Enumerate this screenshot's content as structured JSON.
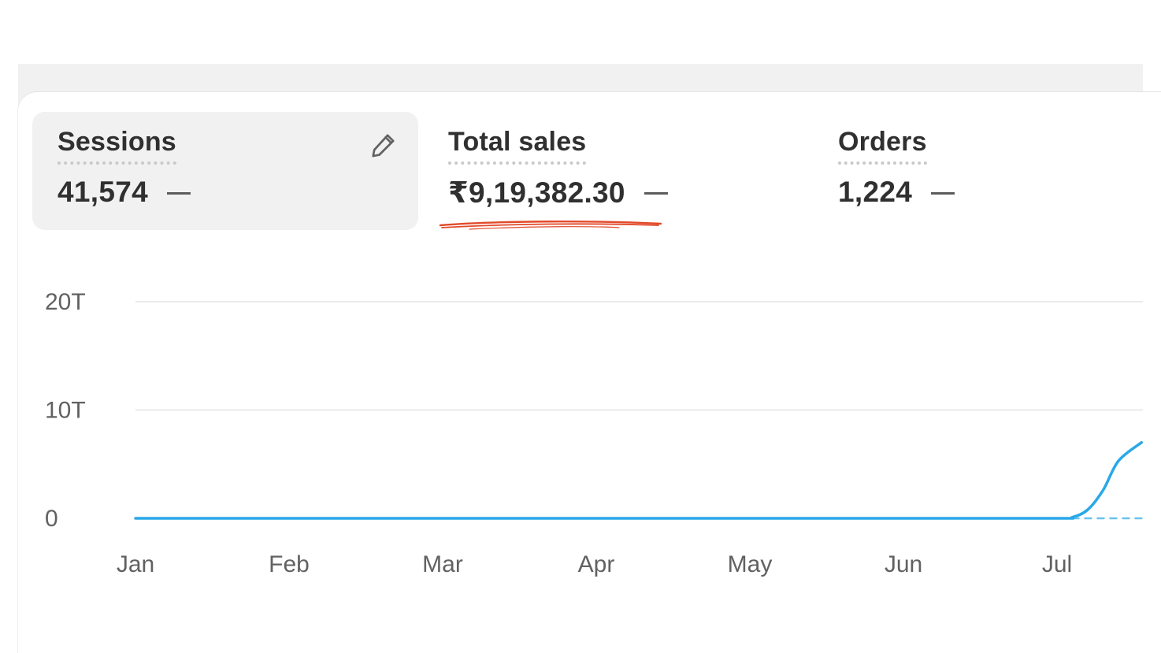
{
  "metrics": [
    {
      "label": "Sessions",
      "value": "41,574",
      "active": true
    },
    {
      "label": "Total sales",
      "value": "₹9,19,382.30",
      "active": false
    },
    {
      "label": "Orders",
      "value": "1,224",
      "active": false
    }
  ],
  "colors": {
    "line": "#29a8e8",
    "annotation": "#e24a2b",
    "grid": "#ebebeb",
    "tick": "#616161"
  },
  "icons": {
    "edit": "pencil-icon"
  },
  "chart_data": {
    "type": "line",
    "x_labels": [
      "Jan",
      "Feb",
      "Mar",
      "Apr",
      "May",
      "Jun",
      "Jul"
    ],
    "y_ticks": [
      "20T",
      "10T",
      "0"
    ],
    "y_tick_values": [
      20,
      10,
      0
    ],
    "ylim": [
      0,
      20
    ],
    "grid": true,
    "series": [
      {
        "style": "solid",
        "points": [
          [
            0,
            0
          ],
          [
            1,
            0
          ],
          [
            2,
            0
          ],
          [
            3,
            0
          ],
          [
            4,
            0
          ],
          [
            5,
            0
          ],
          [
            6,
            0
          ],
          [
            6.1,
            0.1
          ],
          [
            6.2,
            0.8
          ],
          [
            6.3,
            2.6
          ],
          [
            6.4,
            5.3
          ],
          [
            6.55,
            7.0
          ]
        ]
      },
      {
        "style": "dashed",
        "points": [
          [
            6.1,
            0
          ],
          [
            6.55,
            0
          ]
        ]
      }
    ]
  }
}
